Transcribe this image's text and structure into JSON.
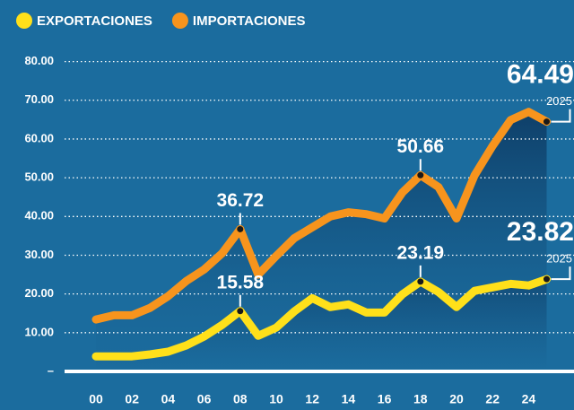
{
  "chart_data": {
    "type": "line",
    "categories": [
      "00",
      null,
      "02",
      null,
      "04",
      null,
      "06",
      null,
      "08",
      null,
      "10",
      null,
      "12",
      null,
      "14",
      null,
      "16",
      null,
      "18",
      null,
      "20",
      null,
      "22",
      null,
      "24",
      null
    ],
    "series": [
      {
        "name": "EXPORTACIONES",
        "color": "#ffe01a",
        "values": [
          3.9,
          3.9,
          3.9,
          4.4,
          5.1,
          6.7,
          9,
          12,
          15.58,
          9.2,
          11.3,
          15.5,
          18.9,
          16.6,
          17.3,
          15.2,
          15.2,
          19.9,
          23.19,
          20.5,
          16.6,
          20.8,
          21.7,
          22.6,
          22.2,
          23.82
        ],
        "value_labels": [
          null,
          null,
          null,
          null,
          null,
          null,
          null,
          null,
          "15.58",
          null,
          null,
          null,
          null,
          null,
          null,
          null,
          null,
          null,
          "23.19",
          null,
          null,
          null,
          null,
          null,
          null,
          "23.82"
        ],
        "end_label": "2025"
      },
      {
        "name": "IMPORTACIONES",
        "color": "#f7941d",
        "values": [
          13.4,
          14.5,
          14.5,
          16.4,
          19.4,
          23.3,
          26.3,
          30.5,
          36.72,
          25,
          29.8,
          34.4,
          37.2,
          40,
          41.1,
          40.6,
          39.5,
          46.2,
          50.66,
          47.6,
          39.5,
          50.6,
          58.2,
          64.9,
          67,
          64.49
        ],
        "value_labels": [
          null,
          null,
          null,
          null,
          null,
          null,
          null,
          null,
          "36.72",
          null,
          null,
          null,
          null,
          null,
          null,
          null,
          null,
          null,
          "50.66",
          null,
          null,
          null,
          null,
          null,
          null,
          "64.49"
        ],
        "end_label": "2025"
      }
    ],
    "ylim": [
      0,
      80
    ],
    "yticks": [
      {
        "value": 0,
        "label": "–"
      },
      {
        "value": 10,
        "label": "10.00"
      },
      {
        "value": 20,
        "label": "20.00"
      },
      {
        "value": 30,
        "label": "30.00"
      },
      {
        "value": 40,
        "label": "40.00"
      },
      {
        "value": 50,
        "label": "50.00"
      },
      {
        "value": 60,
        "label": "60.00"
      },
      {
        "value": 70,
        "label": "70.00"
      },
      {
        "value": 80,
        "label": "80.00"
      }
    ],
    "grid": true
  }
}
